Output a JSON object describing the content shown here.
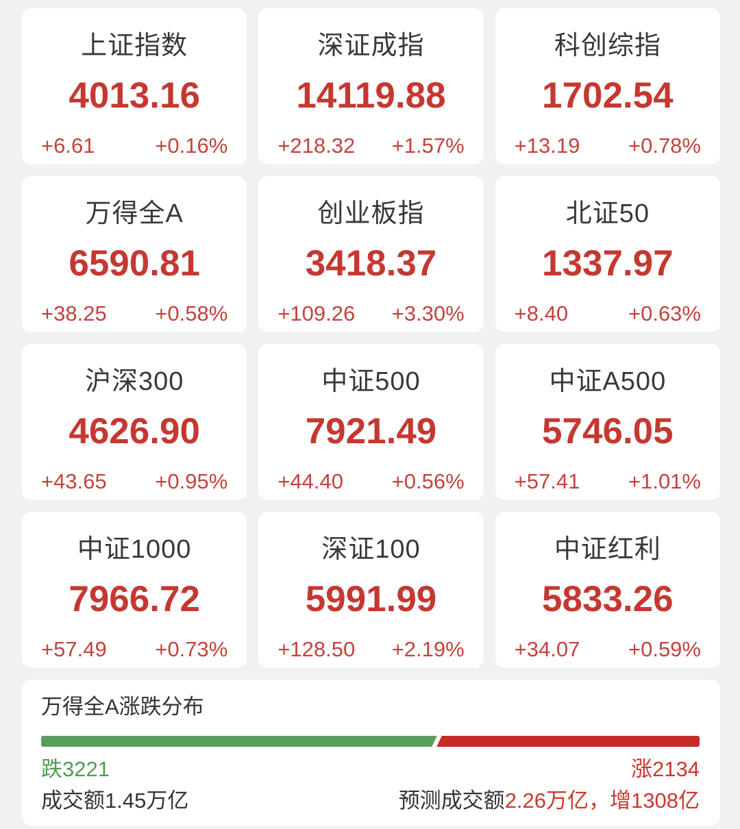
{
  "colors": {
    "page_bg": "#f1f1f2",
    "card_bg": "#ffffff",
    "index_value_red": "#c53831",
    "index_change_red": "#c4423c",
    "bar_green": "#5a9e5d",
    "bar_red": "#c52c28",
    "down_text_green": "#4f9b54",
    "up_text_red": "#cc362c",
    "title_text": "#383838"
  },
  "indices": [
    {
      "name": "上证指数",
      "value": "4013.16",
      "change": "+6.61",
      "pct": "+0.16%"
    },
    {
      "name": "深证成指",
      "value": "14119.88",
      "change": "+218.32",
      "pct": "+1.57%"
    },
    {
      "name": "科创综指",
      "value": "1702.54",
      "change": "+13.19",
      "pct": "+0.78%"
    },
    {
      "name": "万得全A",
      "value": "6590.81",
      "change": "+38.25",
      "pct": "+0.58%"
    },
    {
      "name": "创业板指",
      "value": "3418.37",
      "change": "+109.26",
      "pct": "+3.30%"
    },
    {
      "name": "北证50",
      "value": "1337.97",
      "change": "+8.40",
      "pct": "+0.63%"
    },
    {
      "name": "沪深300",
      "value": "4626.90",
      "change": "+43.65",
      "pct": "+0.95%"
    },
    {
      "name": "中证500",
      "value": "7921.49",
      "change": "+44.40",
      "pct": "+0.56%"
    },
    {
      "name": "中证A500",
      "value": "5746.05",
      "change": "+57.41",
      "pct": "+1.01%"
    },
    {
      "name": "中证1000",
      "value": "7966.72",
      "change": "+57.49",
      "pct": "+0.73%"
    },
    {
      "name": "深证100",
      "value": "5991.99",
      "change": "+128.50",
      "pct": "+2.19%"
    },
    {
      "name": "中证红利",
      "value": "5833.26",
      "change": "+34.07",
      "pct": "+0.59%"
    }
  ],
  "distribution": {
    "title": "万得全A涨跌分布",
    "down_count": 3221,
    "up_count": 2134,
    "down_label": "跌3221",
    "up_label": "涨2134",
    "green_percent": 60,
    "turnover_label": "成交额1.45万亿",
    "forecast_prefix": "预测成交额",
    "forecast_value": "2.26万亿，",
    "forecast_increase": "增1308亿"
  },
  "chart_data": {
    "type": "bar",
    "title": "万得全A涨跌分布",
    "categories": [
      "跌",
      "涨"
    ],
    "values": [
      3221,
      2134
    ],
    "colors": [
      "#5a9e5d",
      "#c52c28"
    ],
    "layout": "horizontal-stacked-100%"
  }
}
